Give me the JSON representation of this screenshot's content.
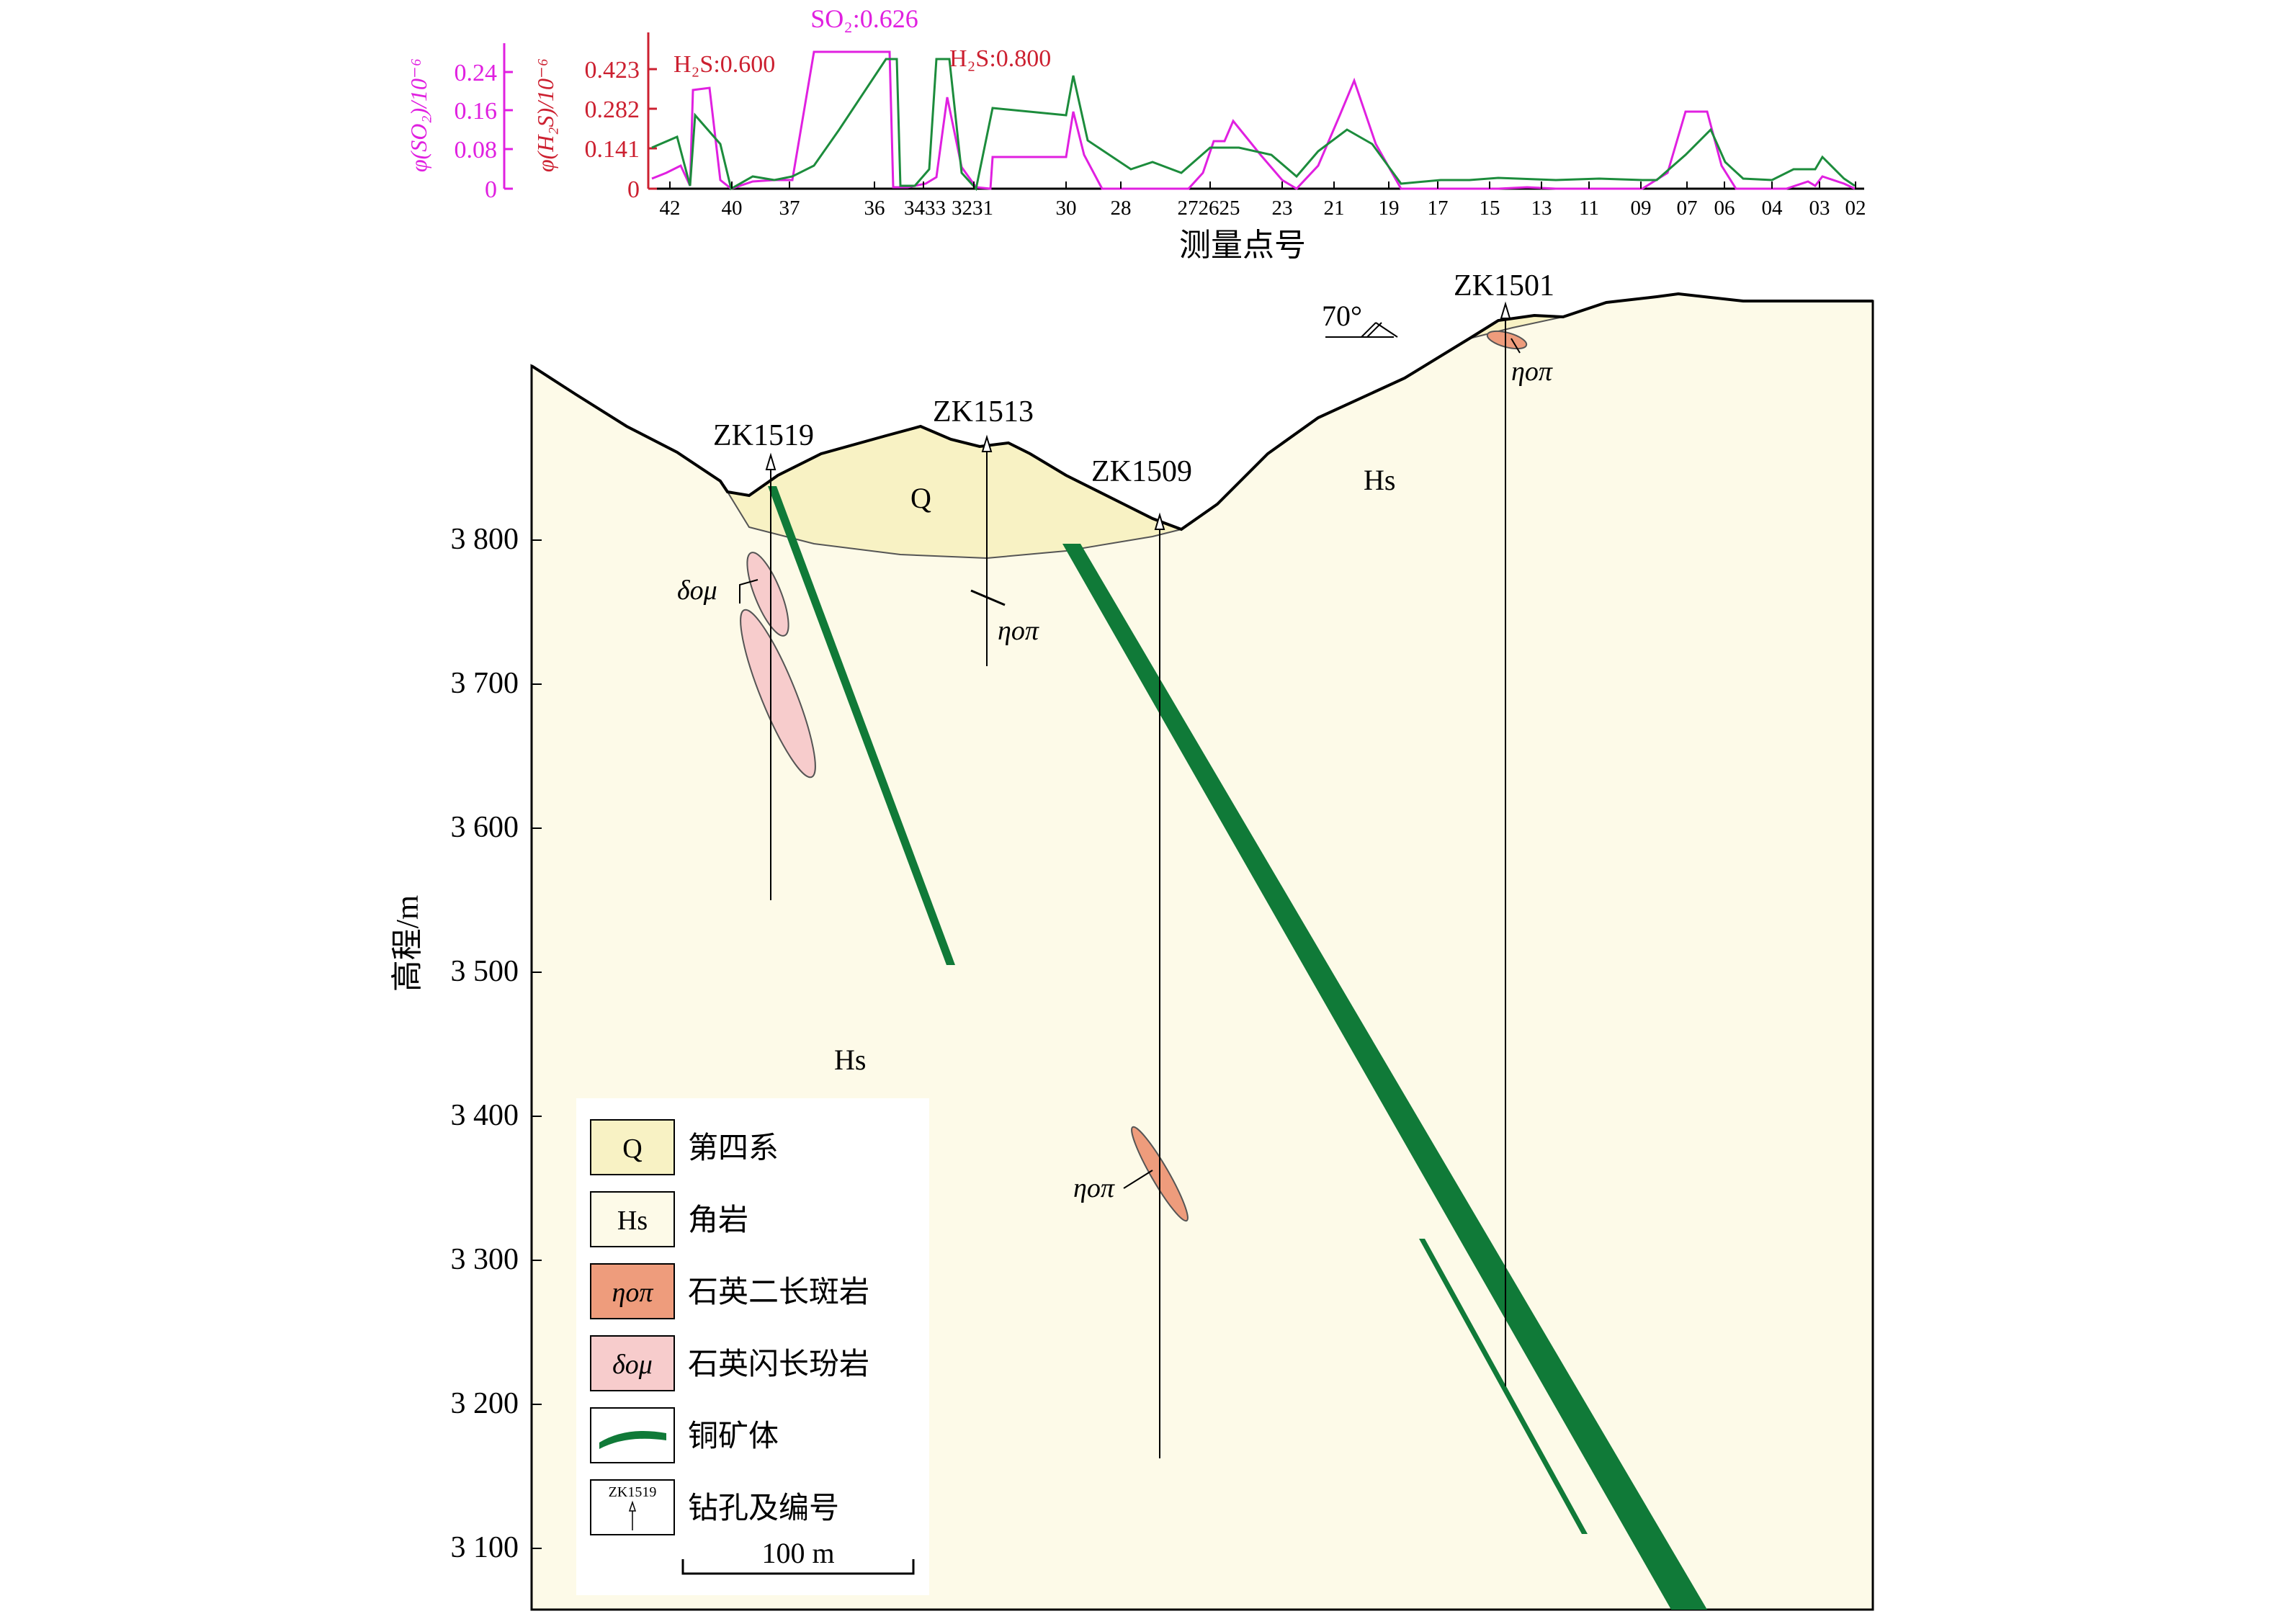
{
  "top_chart": {
    "xlabel": "测量点号",
    "so2_axis": {
      "label": "φ(SO₂)/10⁻⁶",
      "ticks": [
        "0.24",
        "0.16",
        "0.08",
        "0"
      ],
      "color": "#e020e0"
    },
    "h2s_axis": {
      "label": "φ(H₂S)/10⁻⁶",
      "ticks": [
        "0.423",
        "0.282",
        "0.141",
        "0"
      ],
      "color": "#cc2030"
    },
    "x_ticks": [
      "42",
      "40",
      "37",
      "36",
      "3433",
      "3231",
      "30",
      "28",
      "272625",
      "23",
      "21",
      "19",
      "17",
      "15",
      "13",
      "11",
      "09",
      "07",
      "06",
      "04",
      "03",
      "02"
    ],
    "annotations": [
      "SO₂:0.626",
      "H₂S:0.600",
      "H₂S:0.800"
    ],
    "series": [
      {
        "color": "#e020e0"
      },
      {
        "color": "#1c8c3c"
      }
    ]
  },
  "section": {
    "ylabel": "高程/m",
    "y_ticks": [
      "3 800",
      "3 700",
      "3 600",
      "3 500",
      "3 400",
      "3 300",
      "3 200",
      "3 100"
    ],
    "drillholes": [
      "ZK1519",
      "ZK1513",
      "ZK1509",
      "ZK1501"
    ],
    "units": {
      "q": "Q",
      "hs1": "Hs",
      "hs2": "Hs"
    },
    "rock_labels": {
      "dom": "δoμ",
      "nop1": "ηoπ",
      "nop2": "ηoπ",
      "nop3": "ηoπ"
    },
    "dip": "70°",
    "colors": {
      "background": "#fdfae8",
      "quaternary": "#f8f2c4",
      "ore": "#107a38",
      "monzonite": "#ee9c7c",
      "diorite": "#f7cccc"
    }
  },
  "legend": {
    "items": [
      {
        "symbol": "Q",
        "label": "第四系"
      },
      {
        "symbol": "Hs",
        "label": "角岩"
      },
      {
        "symbol": "ηoπ",
        "label": "石英二长斑岩"
      },
      {
        "symbol": "δoμ",
        "label": "石英闪长玢岩"
      },
      {
        "symbol": "",
        "label": "铜矿体"
      },
      {
        "symbol": "ZK1519",
        "label": "钻孔及编号"
      }
    ],
    "scale": "100 m"
  }
}
